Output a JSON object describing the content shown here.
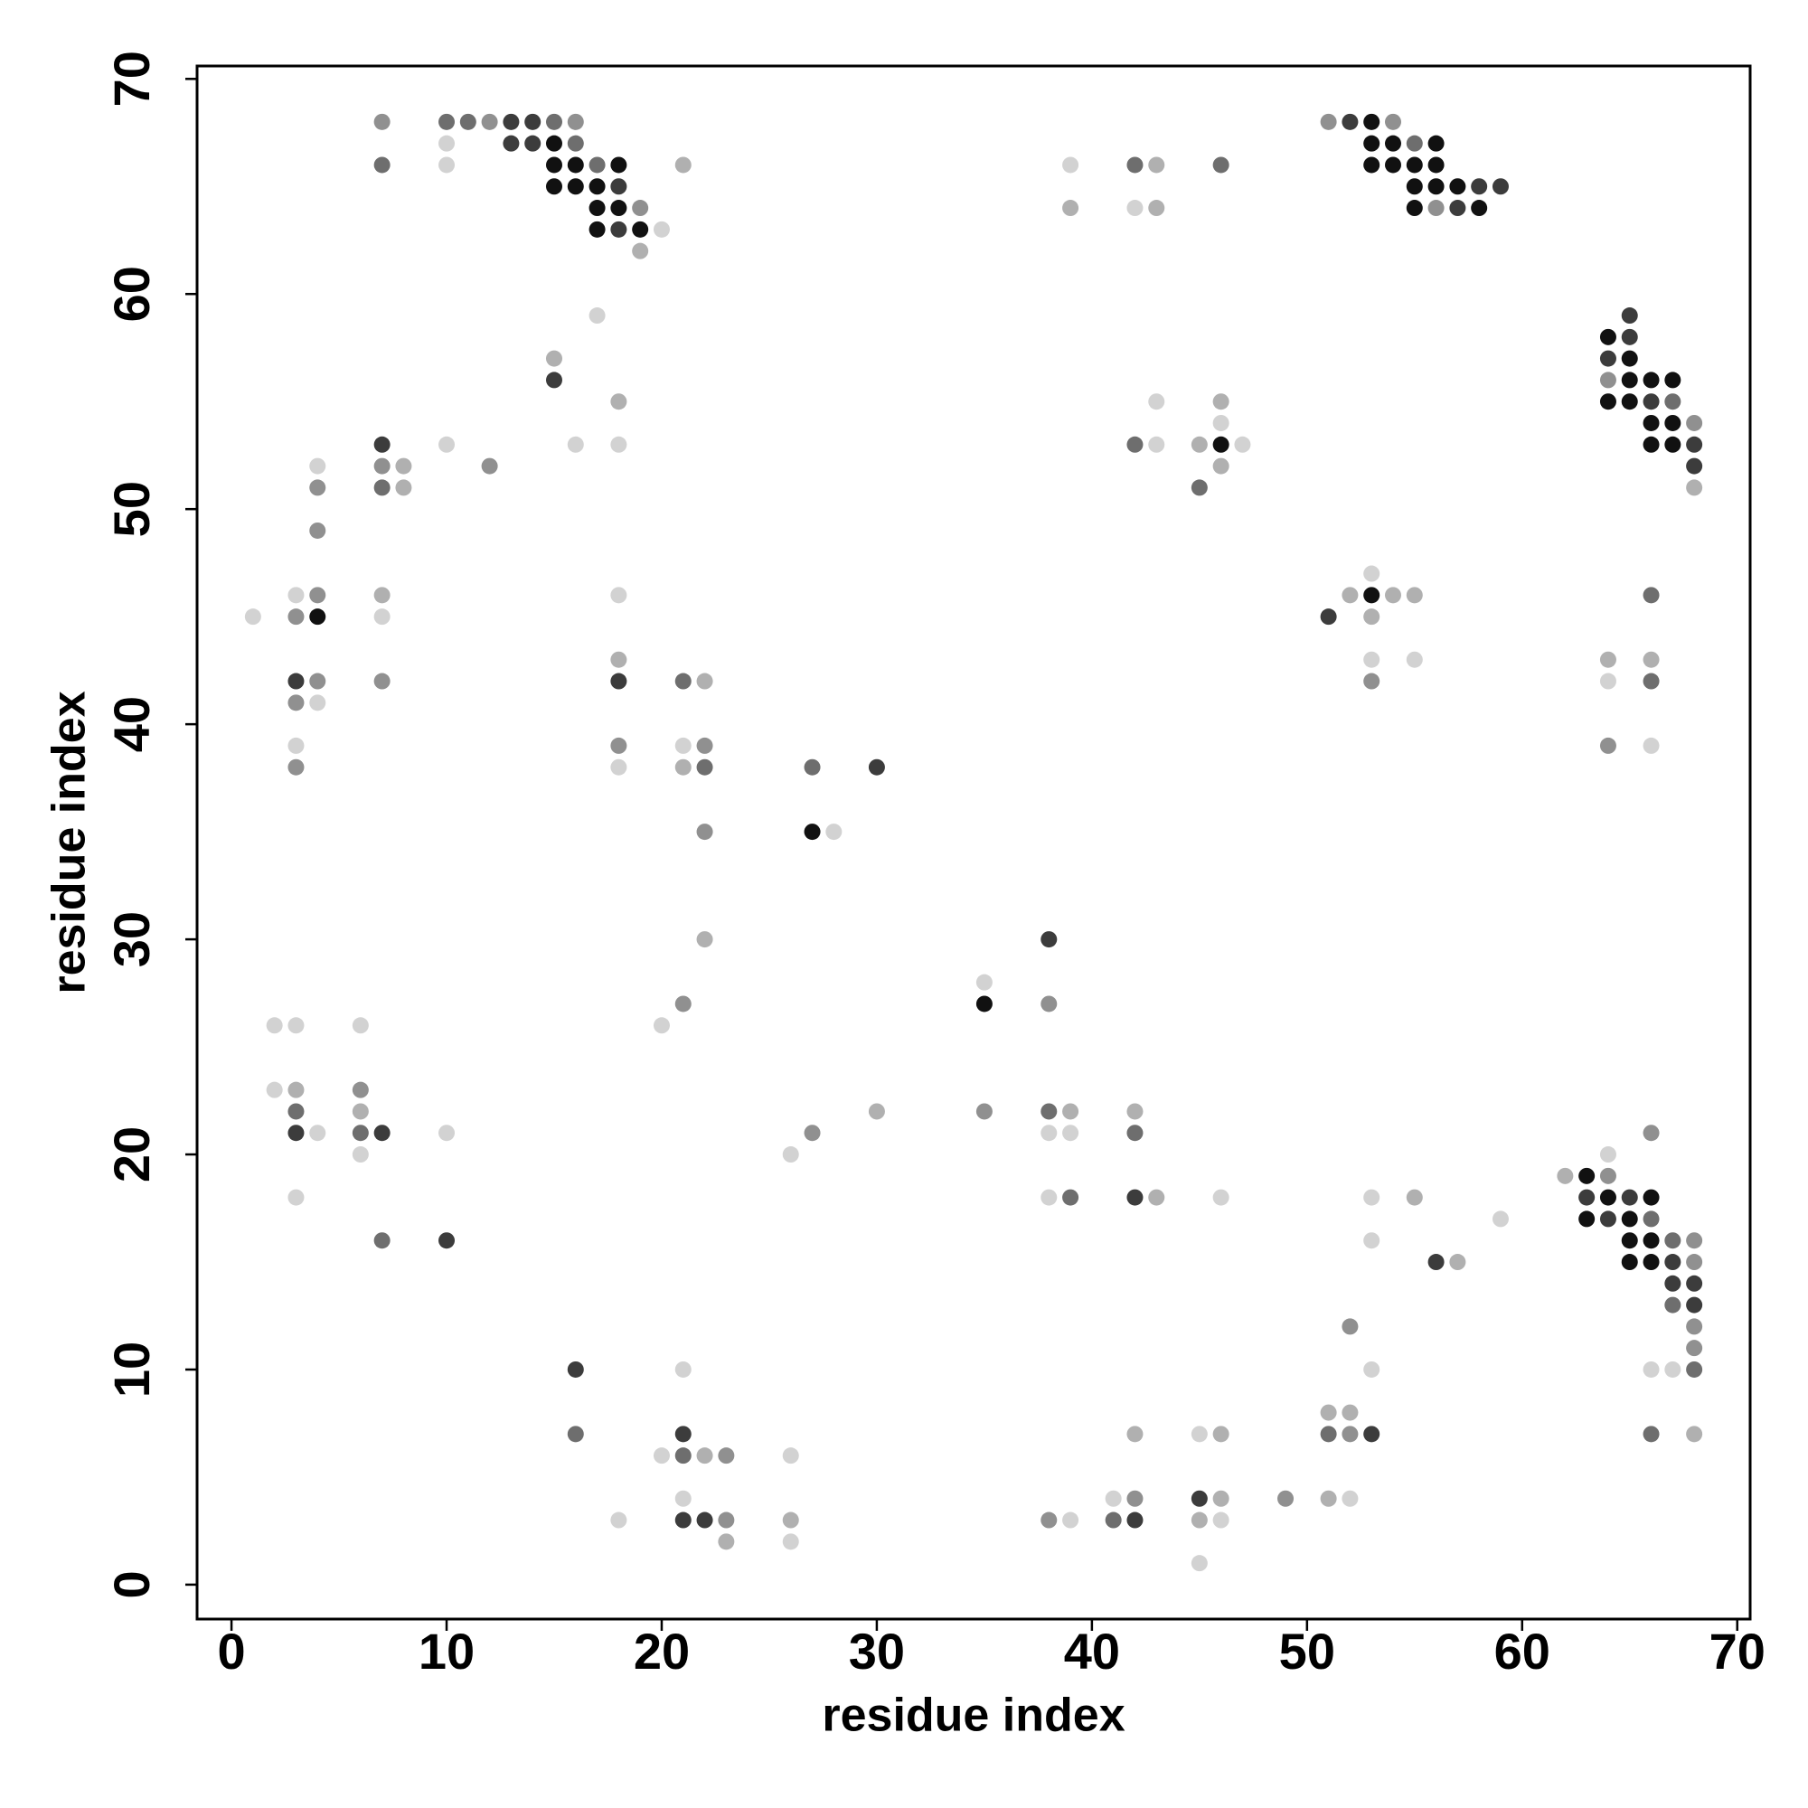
{
  "chart_data": {
    "type": "scatter",
    "x_label": "residue index",
    "y_label": "residue index",
    "xlim": [
      -1.6,
      70.6
    ],
    "ylim": [
      -1.6,
      70.6
    ],
    "xticks": [
      0,
      10,
      20,
      30,
      40,
      50,
      60,
      70
    ],
    "yticks": [
      0,
      10,
      20,
      30,
      40,
      50,
      60,
      70
    ],
    "x": [
      7,
      10,
      11,
      12,
      13,
      14,
      15,
      16,
      51,
      52,
      53,
      54,
      10,
      13,
      14,
      15,
      16,
      53,
      54,
      55,
      56,
      7,
      10,
      15,
      16,
      17,
      18,
      21,
      39,
      42,
      43,
      46,
      53,
      54,
      55,
      56,
      15,
      16,
      17,
      18,
      55,
      56,
      57,
      58,
      59,
      17,
      18,
      19,
      39,
      42,
      43,
      55,
      56,
      57,
      58,
      17,
      18,
      19,
      20,
      19,
      17,
      65,
      64,
      65,
      15,
      64,
      65,
      15,
      64,
      65,
      66,
      67,
      18,
      43,
      46,
      64,
      65,
      66,
      67,
      46,
      66,
      67,
      68,
      7,
      10,
      16,
      18,
      42,
      43,
      45,
      46,
      47,
      66,
      67,
      68,
      4,
      7,
      8,
      12,
      46,
      68,
      4,
      7,
      8,
      45,
      68,
      4,
      53,
      3,
      4,
      7,
      18,
      52,
      53,
      54,
      55,
      66,
      1,
      3,
      4,
      7,
      51,
      53,
      18,
      53,
      55,
      64,
      66,
      3,
      4,
      7,
      18,
      21,
      22,
      53,
      64,
      66,
      3,
      4,
      3,
      18,
      21,
      22,
      64,
      66,
      3,
      18,
      21,
      22,
      27,
      30,
      22,
      27,
      28,
      22,
      38,
      35,
      21,
      35,
      38,
      2,
      3,
      6,
      20,
      2,
      3,
      6,
      3,
      6,
      30,
      35,
      38,
      39,
      42,
      3,
      4,
      6,
      7,
      10,
      27,
      38,
      39,
      42,
      66,
      6,
      26,
      64,
      62,
      63,
      64,
      3,
      38,
      39,
      42,
      43,
      46,
      53,
      55,
      63,
      64,
      65,
      66,
      59,
      63,
      64,
      65,
      66,
      7,
      10,
      53,
      65,
      66,
      67,
      68,
      56,
      57,
      65,
      66,
      67,
      68,
      67,
      68,
      67,
      68,
      52,
      68,
      68,
      16,
      21,
      53,
      66,
      67,
      68,
      51,
      52,
      16,
      21,
      42,
      45,
      46,
      51,
      52,
      53,
      66,
      68,
      20,
      21,
      22,
      23,
      26,
      21,
      41,
      42,
      45,
      46,
      49,
      51,
      52,
      18,
      21,
      22,
      23,
      26,
      38,
      39,
      41,
      42,
      45,
      46,
      23,
      26,
      45
    ],
    "values": [
      68,
      68,
      68,
      68,
      68,
      68,
      68,
      68,
      68,
      68,
      68,
      68,
      67,
      67,
      67,
      67,
      67,
      67,
      67,
      67,
      67,
      66,
      66,
      66,
      66,
      66,
      66,
      66,
      66,
      66,
      66,
      66,
      66,
      66,
      66,
      66,
      65,
      65,
      65,
      65,
      65,
      65,
      65,
      65,
      65,
      64,
      64,
      64,
      64,
      64,
      64,
      64,
      64,
      64,
      64,
      63,
      63,
      63,
      63,
      62,
      59,
      59,
      58,
      58,
      57,
      57,
      57,
      56,
      56,
      56,
      56,
      56,
      55,
      55,
      55,
      55,
      55,
      55,
      55,
      54,
      54,
      54,
      54,
      53,
      53,
      53,
      53,
      53,
      53,
      53,
      53,
      53,
      53,
      53,
      53,
      52,
      52,
      52,
      52,
      52,
      52,
      51,
      51,
      51,
      51,
      51,
      49,
      47,
      46,
      46,
      46,
      46,
      46,
      46,
      46,
      46,
      46,
      45,
      45,
      45,
      45,
      45,
      45,
      43,
      43,
      43,
      43,
      43,
      42,
      42,
      42,
      42,
      42,
      42,
      42,
      42,
      42,
      41,
      41,
      39,
      39,
      39,
      39,
      39,
      39,
      38,
      38,
      38,
      38,
      38,
      38,
      35,
      35,
      35,
      30,
      30,
      28,
      27,
      27,
      27,
      26,
      26,
      26,
      26,
      23,
      23,
      23,
      22,
      22,
      22,
      22,
      22,
      22,
      22,
      21,
      21,
      21,
      21,
      21,
      21,
      21,
      21,
      21,
      21,
      20,
      20,
      20,
      19,
      19,
      19,
      18,
      18,
      18,
      18,
      18,
      18,
      18,
      18,
      18,
      18,
      18,
      18,
      17,
      17,
      17,
      17,
      17,
      16,
      16,
      16,
      16,
      16,
      16,
      16,
      15,
      15,
      15,
      15,
      15,
      15,
      14,
      14,
      13,
      13,
      12,
      12,
      11,
      10,
      10,
      10,
      10,
      10,
      10,
      8,
      8,
      7,
      7,
      7,
      7,
      7,
      7,
      7,
      7,
      7,
      7,
      6,
      6,
      6,
      6,
      6,
      4,
      4,
      4,
      4,
      4,
      4,
      4,
      4,
      3,
      3,
      3,
      3,
      3,
      3,
      3,
      3,
      3,
      3,
      3,
      2,
      2,
      1
    ],
    "colors": [
      "#909090",
      "#6e6e6e",
      "#6e6e6e",
      "#909090",
      "#3c3c3c",
      "#3c3c3c",
      "#6e6e6e",
      "#909090",
      "#909090",
      "#3c3c3c",
      "#111111",
      "#909090",
      "#d2d2d2",
      "#3c3c3c",
      "#3c3c3c",
      "#111111",
      "#6e6e6e",
      "#111111",
      "#111111",
      "#6e6e6e",
      "#111111",
      "#6e6e6e",
      "#d2d2d2",
      "#111111",
      "#111111",
      "#6e6e6e",
      "#111111",
      "#b0b0b0",
      "#d2d2d2",
      "#6e6e6e",
      "#b0b0b0",
      "#6e6e6e",
      "#111111",
      "#111111",
      "#111111",
      "#111111",
      "#111111",
      "#111111",
      "#111111",
      "#3c3c3c",
      "#111111",
      "#111111",
      "#111111",
      "#3c3c3c",
      "#3c3c3c",
      "#111111",
      "#111111",
      "#909090",
      "#b0b0b0",
      "#d2d2d2",
      "#b0b0b0",
      "#111111",
      "#909090",
      "#3c3c3c",
      "#111111",
      "#111111",
      "#3c3c3c",
      "#111111",
      "#d2d2d2",
      "#b0b0b0",
      "#d2d2d2",
      "#3c3c3c",
      "#111111",
      "#3c3c3c",
      "#b0b0b0",
      "#3c3c3c",
      "#111111",
      "#3c3c3c",
      "#909090",
      "#111111",
      "#111111",
      "#111111",
      "#b0b0b0",
      "#d2d2d2",
      "#b0b0b0",
      "#111111",
      "#111111",
      "#3c3c3c",
      "#6e6e6e",
      "#d2d2d2",
      "#111111",
      "#111111",
      "#909090",
      "#3c3c3c",
      "#d2d2d2",
      "#d2d2d2",
      "#d2d2d2",
      "#6e6e6e",
      "#d2d2d2",
      "#b0b0b0",
      "#111111",
      "#d2d2d2",
      "#111111",
      "#111111",
      "#3c3c3c",
      "#d2d2d2",
      "#909090",
      "#b0b0b0",
      "#909090",
      "#b0b0b0",
      "#3c3c3c",
      "#909090",
      "#6e6e6e",
      "#b0b0b0",
      "#6e6e6e",
      "#b0b0b0",
      "#909090",
      "#d2d2d2",
      "#d2d2d2",
      "#909090",
      "#b0b0b0",
      "#d2d2d2",
      "#b0b0b0",
      "#111111",
      "#b0b0b0",
      "#b0b0b0",
      "#6e6e6e",
      "#d2d2d2",
      "#909090",
      "#111111",
      "#d2d2d2",
      "#3c3c3c",
      "#b0b0b0",
      "#b0b0b0",
      "#d2d2d2",
      "#d2d2d2",
      "#b0b0b0",
      "#b0b0b0",
      "#3c3c3c",
      "#909090",
      "#909090",
      "#3c3c3c",
      "#6e6e6e",
      "#b0b0b0",
      "#909090",
      "#d2d2d2",
      "#6e6e6e",
      "#909090",
      "#d2d2d2",
      "#d2d2d2",
      "#909090",
      "#d2d2d2",
      "#909090",
      "#909090",
      "#d2d2d2",
      "#909090",
      "#d2d2d2",
      "#b0b0b0",
      "#6e6e6e",
      "#6e6e6e",
      "#3c3c3c",
      "#909090",
      "#111111",
      "#d2d2d2",
      "#b0b0b0",
      "#3c3c3c",
      "#d2d2d2",
      "#909090",
      "#111111",
      "#909090",
      "#d2d2d2",
      "#d2d2d2",
      "#d2d2d2",
      "#d2d2d2",
      "#d2d2d2",
      "#b0b0b0",
      "#909090",
      "#6e6e6e",
      "#b0b0b0",
      "#b0b0b0",
      "#909090",
      "#6e6e6e",
      "#b0b0b0",
      "#b0b0b0",
      "#3c3c3c",
      "#d2d2d2",
      "#6e6e6e",
      "#3c3c3c",
      "#d2d2d2",
      "#909090",
      "#d2d2d2",
      "#d2d2d2",
      "#6e6e6e",
      "#909090",
      "#d2d2d2",
      "#d2d2d2",
      "#d2d2d2",
      "#b0b0b0",
      "#111111",
      "#909090",
      "#d2d2d2",
      "#d2d2d2",
      "#6e6e6e",
      "#3c3c3c",
      "#b0b0b0",
      "#d2d2d2",
      "#d2d2d2",
      "#b0b0b0",
      "#3c3c3c",
      "#111111",
      "#3c3c3c",
      "#111111",
      "#d2d2d2",
      "#111111",
      "#3c3c3c",
      "#111111",
      "#6e6e6e",
      "#6e6e6e",
      "#3c3c3c",
      "#d2d2d2",
      "#111111",
      "#111111",
      "#6e6e6e",
      "#909090",
      "#3c3c3c",
      "#b0b0b0",
      "#111111",
      "#111111",
      "#3c3c3c",
      "#909090",
      "#3c3c3c",
      "#3c3c3c",
      "#6e6e6e",
      "#3c3c3c",
      "#909090",
      "#909090",
      "#909090",
      "#3c3c3c",
      "#d2d2d2",
      "#d2d2d2",
      "#d2d2d2",
      "#d2d2d2",
      "#6e6e6e",
      "#b0b0b0",
      "#b0b0b0",
      "#6e6e6e",
      "#3c3c3c",
      "#b0b0b0",
      "#d2d2d2",
      "#b0b0b0",
      "#6e6e6e",
      "#909090",
      "#3c3c3c",
      "#6e6e6e",
      "#b0b0b0",
      "#d2d2d2",
      "#6e6e6e",
      "#b0b0b0",
      "#909090",
      "#d2d2d2",
      "#d2d2d2",
      "#d2d2d2",
      "#909090",
      "#3c3c3c",
      "#b0b0b0",
      "#909090",
      "#b0b0b0",
      "#d2d2d2",
      "#d2d2d2",
      "#3c3c3c",
      "#3c3c3c",
      "#909090",
      "#b0b0b0",
      "#909090",
      "#d2d2d2",
      "#6e6e6e",
      "#3c3c3c",
      "#b0b0b0",
      "#d2d2d2",
      "#b0b0b0",
      "#d2d2d2",
      "#d2d2d2"
    ]
  }
}
